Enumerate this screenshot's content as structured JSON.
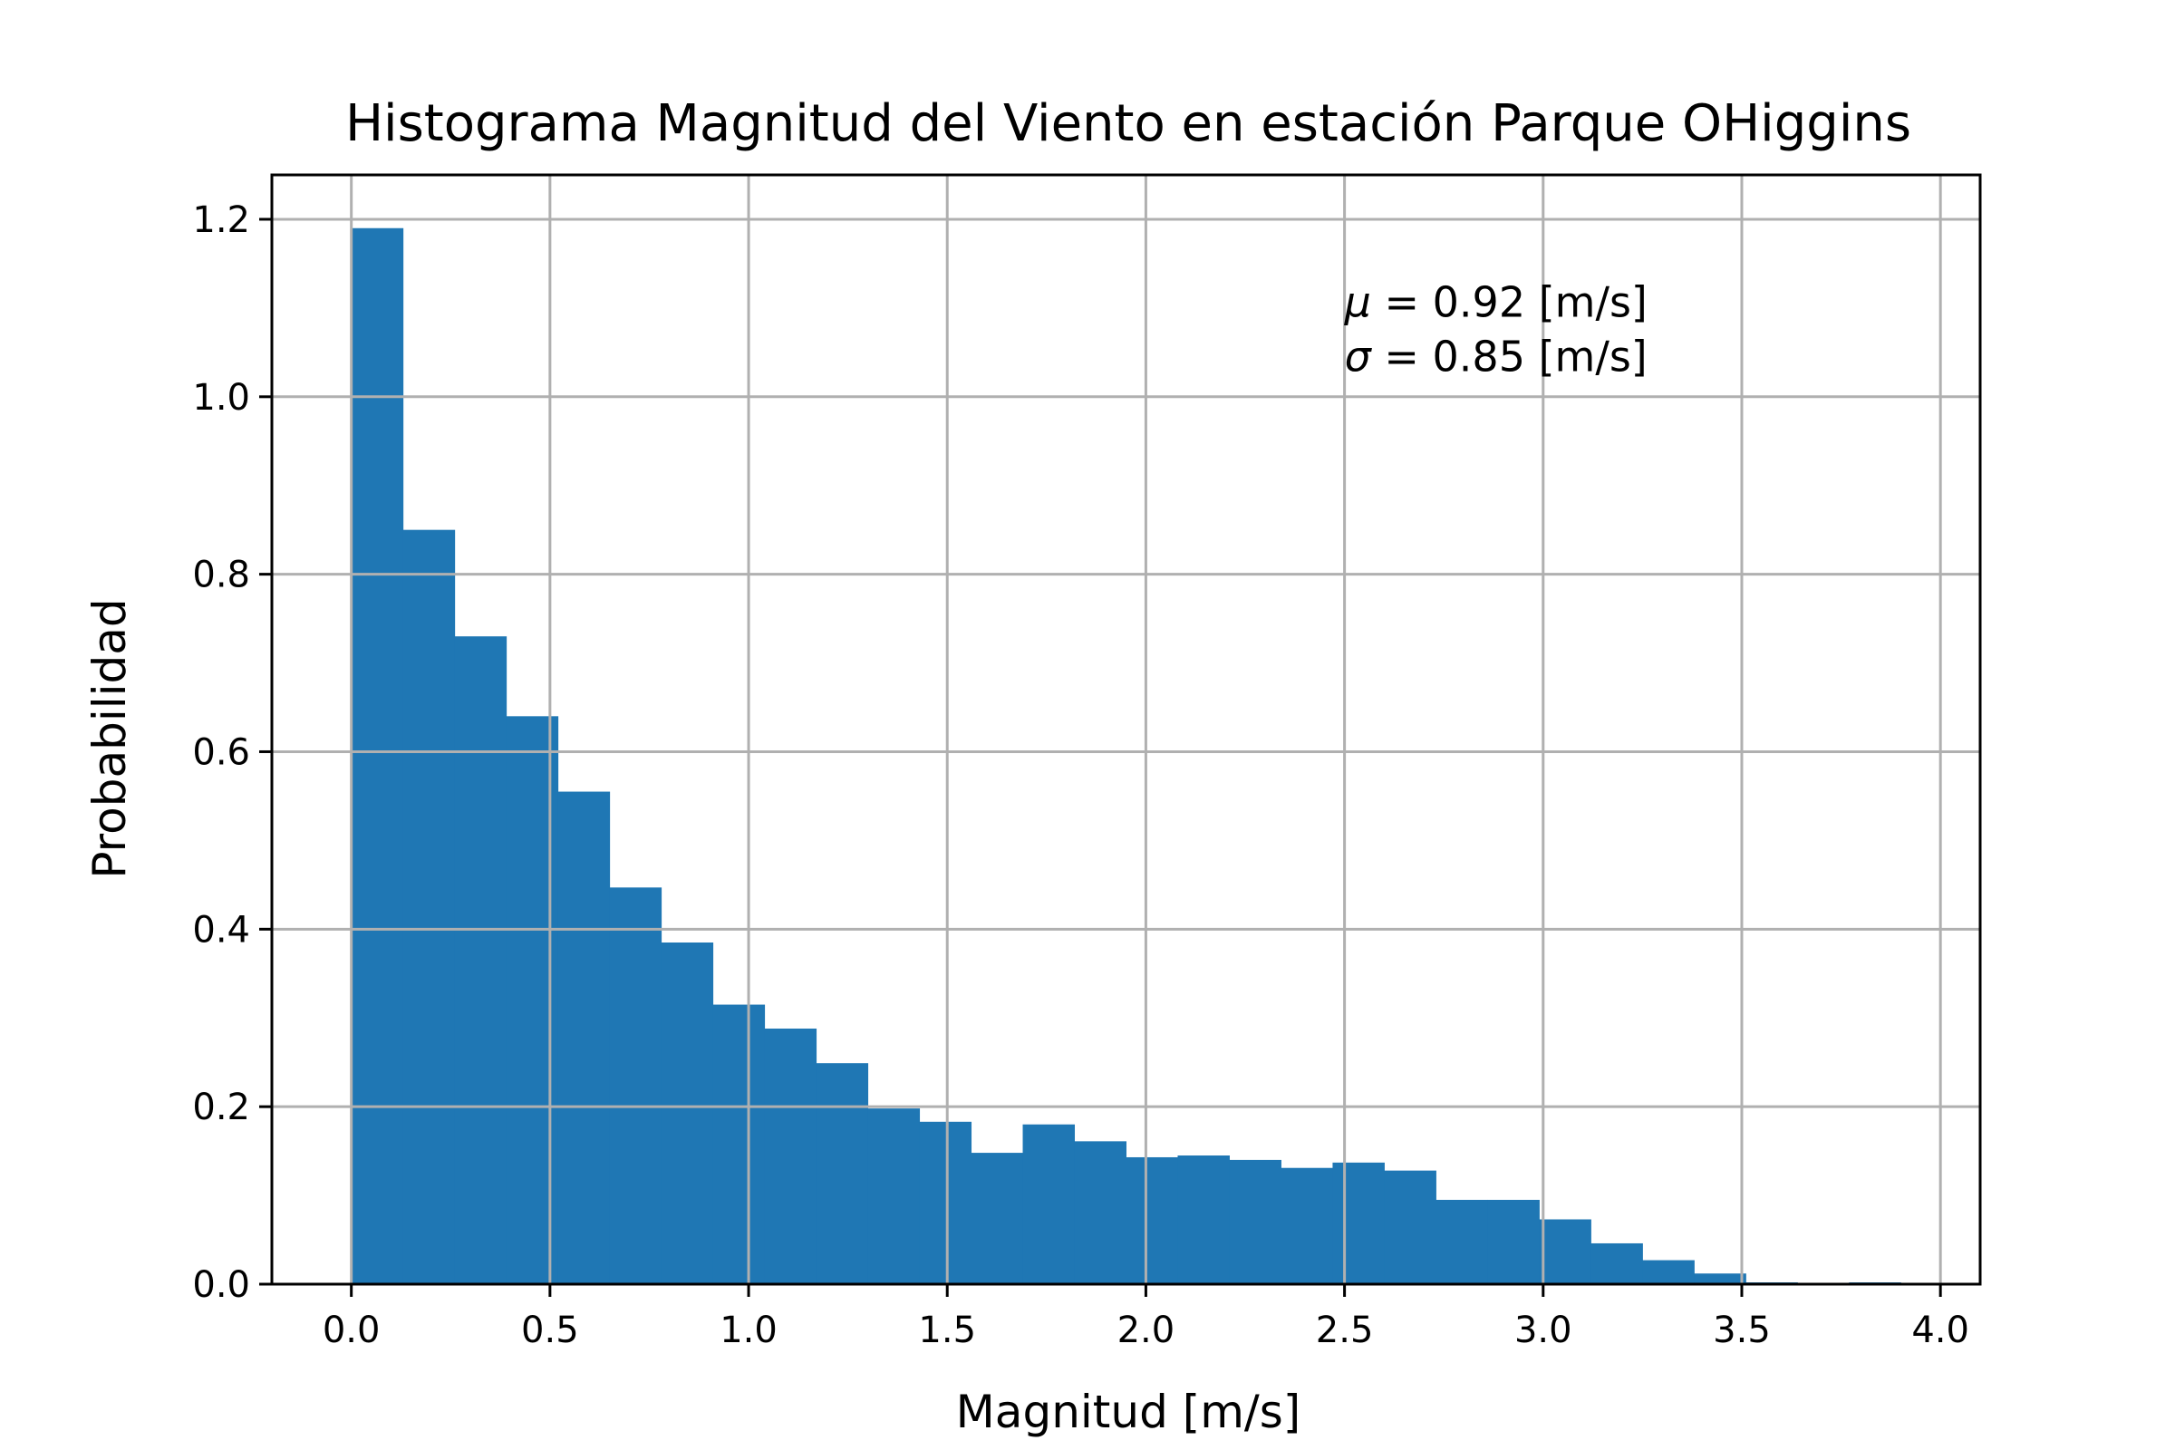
{
  "chart_data": {
    "type": "bar",
    "subtype": "histogram",
    "title": "Histograma Magnitud del Viento en estación Parque OHiggins",
    "xlabel": "Magnitud [m/s]",
    "ylabel": "Probabilidad",
    "xlim": [
      -0.2,
      4.1
    ],
    "ylim": [
      0.0,
      1.25
    ],
    "grid": true,
    "bar_color": "#1f77b4",
    "bin_width": 0.13,
    "bins": [
      {
        "x0": 0.0,
        "value": 1.19
      },
      {
        "x0": 0.13,
        "value": 0.85
      },
      {
        "x0": 0.26,
        "value": 0.73
      },
      {
        "x0": 0.39,
        "value": 0.64
      },
      {
        "x0": 0.52,
        "value": 0.555
      },
      {
        "x0": 0.65,
        "value": 0.447
      },
      {
        "x0": 0.78,
        "value": 0.385
      },
      {
        "x0": 0.91,
        "value": 0.315
      },
      {
        "x0": 1.04,
        "value": 0.288
      },
      {
        "x0": 1.17,
        "value": 0.249
      },
      {
        "x0": 1.3,
        "value": 0.198
      },
      {
        "x0": 1.43,
        "value": 0.183
      },
      {
        "x0": 1.56,
        "value": 0.148
      },
      {
        "x0": 1.69,
        "value": 0.18
      },
      {
        "x0": 1.82,
        "value": 0.161
      },
      {
        "x0": 1.95,
        "value": 0.143
      },
      {
        "x0": 2.08,
        "value": 0.145
      },
      {
        "x0": 2.21,
        "value": 0.14
      },
      {
        "x0": 2.34,
        "value": 0.131
      },
      {
        "x0": 2.47,
        "value": 0.137
      },
      {
        "x0": 2.6,
        "value": 0.128
      },
      {
        "x0": 2.73,
        "value": 0.095
      },
      {
        "x0": 2.86,
        "value": 0.095
      },
      {
        "x0": 2.99,
        "value": 0.073
      },
      {
        "x0": 3.12,
        "value": 0.046
      },
      {
        "x0": 3.25,
        "value": 0.027
      },
      {
        "x0": 3.38,
        "value": 0.012
      },
      {
        "x0": 3.51,
        "value": 0.002
      },
      {
        "x0": 3.64,
        "value": 0.001
      },
      {
        "x0": 3.77,
        "value": 0.002
      }
    ],
    "x_ticks": [
      {
        "value": 0.0,
        "label": "0.0"
      },
      {
        "value": 0.5,
        "label": "0.5"
      },
      {
        "value": 1.0,
        "label": "1.0"
      },
      {
        "value": 1.5,
        "label": "1.5"
      },
      {
        "value": 2.0,
        "label": "2.0"
      },
      {
        "value": 2.5,
        "label": "2.5"
      },
      {
        "value": 3.0,
        "label": "3.0"
      },
      {
        "value": 3.5,
        "label": "3.5"
      },
      {
        "value": 4.0,
        "label": "4.0"
      }
    ],
    "y_ticks": [
      {
        "value": 0.0,
        "label": "0.0"
      },
      {
        "value": 0.2,
        "label": "0.2"
      },
      {
        "value": 0.4,
        "label": "0.4"
      },
      {
        "value": 0.6,
        "label": "0.6"
      },
      {
        "value": 0.8,
        "label": "0.8"
      },
      {
        "value": 1.0,
        "label": "1.0"
      },
      {
        "value": 1.2,
        "label": "1.2"
      }
    ],
    "annotations": {
      "anchor_x": 2.5,
      "anchor_y": 1.09,
      "mean_symbol": "μ",
      "mean_text": " = 0.92 [m/s]",
      "std_symbol": "σ",
      "std_text": " = 0.85 [m/s]"
    }
  }
}
